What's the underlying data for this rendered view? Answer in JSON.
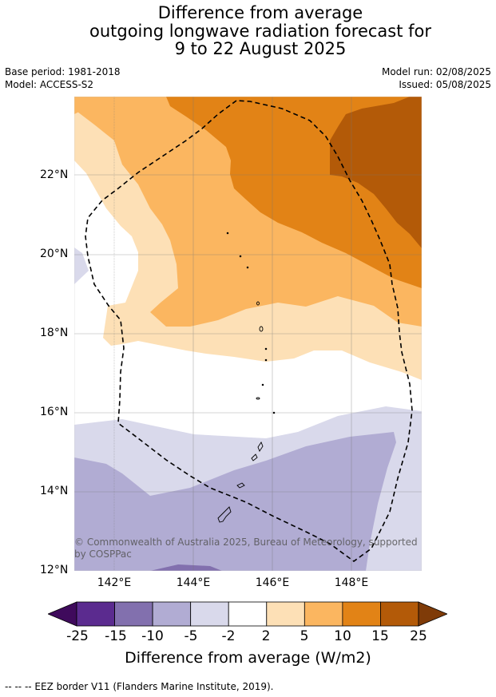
{
  "title": {
    "line1": "Difference from average",
    "line2": "outgoing longwave radiation forecast for",
    "line3": "9 to 22 August 2025"
  },
  "meta": {
    "base_period": "Base period: 1981-2018",
    "model": "Model: ACCESS-S2",
    "model_run": "Model run: 02/08/2025",
    "issued": "Issued: 05/08/2025"
  },
  "map": {
    "lat_labels": [
      "22°N",
      "20°N",
      "18°N",
      "16°N",
      "14°N",
      "12°N"
    ],
    "lon_labels": [
      "142°E",
      "144°E",
      "146°E",
      "148°E"
    ],
    "copyright": "© Commonwealth of Australia 2025, Bureau of Meteorology, supported by COSPPac"
  },
  "colorbar": {
    "ticks": [
      "-25",
      "-15",
      "-10",
      "-5",
      "-2",
      "2",
      "5",
      "10",
      "15",
      "25"
    ],
    "colors": [
      "#3f0a5c",
      "#5b2b8f",
      "#8270ae",
      "#b1acd3",
      "#d9d9eb",
      "#ffffff",
      "#fde0b6",
      "#fbb660",
      "#e28316",
      "#b35a08",
      "#7f3b08"
    ],
    "label": "Difference from average (W/m2)"
  },
  "footer": "--  --  -- EEZ border V11 (Flanders Marine Institute, 2019)."
}
